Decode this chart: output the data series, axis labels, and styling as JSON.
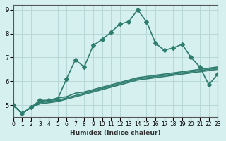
{
  "xlabel": "Humidex (Indice chaleur)",
  "ylabel": "",
  "bg_color": "#d6f0f0",
  "grid_color": "#b8d8d8",
  "line_color": "#2e7d6e",
  "xlim": [
    0,
    23
  ],
  "ylim": [
    4.5,
    9.2
  ],
  "xticks": [
    0,
    1,
    2,
    3,
    4,
    5,
    6,
    7,
    8,
    9,
    10,
    11,
    12,
    13,
    14,
    15,
    16,
    17,
    18,
    19,
    20,
    21,
    22,
    23
  ],
  "yticks": [
    5,
    6,
    7,
    8,
    9
  ],
  "series": [
    {
      "x": [
        0,
        1,
        2,
        3,
        4,
        5,
        6,
        7,
        8,
        9,
        10,
        11,
        12,
        13,
        14,
        15,
        16,
        17,
        18,
        19,
        20,
        21,
        22,
        23
      ],
      "y": [
        5.0,
        4.65,
        4.9,
        5.2,
        5.2,
        5.25,
        6.1,
        6.9,
        6.6,
        7.5,
        7.75,
        8.05,
        8.4,
        8.5,
        9.0,
        8.5,
        7.6,
        7.3,
        7.4,
        7.55,
        7.0,
        6.6,
        5.85,
        6.3
      ],
      "marker": "D",
      "markersize": 3,
      "linewidth": 1.2,
      "has_marker": true
    },
    {
      "x": [
        0,
        1,
        2,
        3,
        4,
        5,
        6,
        7,
        8,
        9,
        10,
        11,
        12,
        13,
        14,
        15,
        16,
        17,
        18,
        19,
        20,
        21,
        22,
        23
      ],
      "y": [
        5.0,
        4.65,
        4.9,
        5.15,
        5.2,
        5.3,
        5.35,
        5.5,
        5.55,
        5.65,
        5.75,
        5.85,
        5.95,
        6.05,
        6.15,
        6.2,
        6.25,
        6.3,
        6.35,
        6.4,
        6.45,
        6.5,
        6.55,
        6.6
      ],
      "marker": null,
      "markersize": 0,
      "linewidth": 1.2,
      "has_marker": false
    },
    {
      "x": [
        0,
        1,
        2,
        3,
        4,
        5,
        6,
        7,
        8,
        9,
        10,
        11,
        12,
        13,
        14,
        15,
        16,
        17,
        18,
        19,
        20,
        21,
        22,
        23
      ],
      "y": [
        5.0,
        4.65,
        4.9,
        5.1,
        5.15,
        5.2,
        5.3,
        5.4,
        5.5,
        5.6,
        5.7,
        5.8,
        5.9,
        6.0,
        6.1,
        6.15,
        6.2,
        6.25,
        6.3,
        6.35,
        6.4,
        6.45,
        6.5,
        6.55
      ],
      "marker": null,
      "markersize": 0,
      "linewidth": 1.2,
      "has_marker": false
    },
    {
      "x": [
        0,
        1,
        2,
        3,
        4,
        5,
        6,
        7,
        8,
        9,
        10,
        11,
        12,
        13,
        14,
        15,
        16,
        17,
        18,
        19,
        20,
        21,
        22,
        23
      ],
      "y": [
        5.0,
        4.65,
        4.9,
        5.05,
        5.1,
        5.15,
        5.25,
        5.35,
        5.45,
        5.55,
        5.65,
        5.75,
        5.85,
        5.95,
        6.05,
        6.1,
        6.15,
        6.2,
        6.25,
        6.3,
        6.35,
        6.4,
        6.45,
        6.5
      ],
      "marker": null,
      "markersize": 0,
      "linewidth": 1.2,
      "has_marker": false
    }
  ]
}
